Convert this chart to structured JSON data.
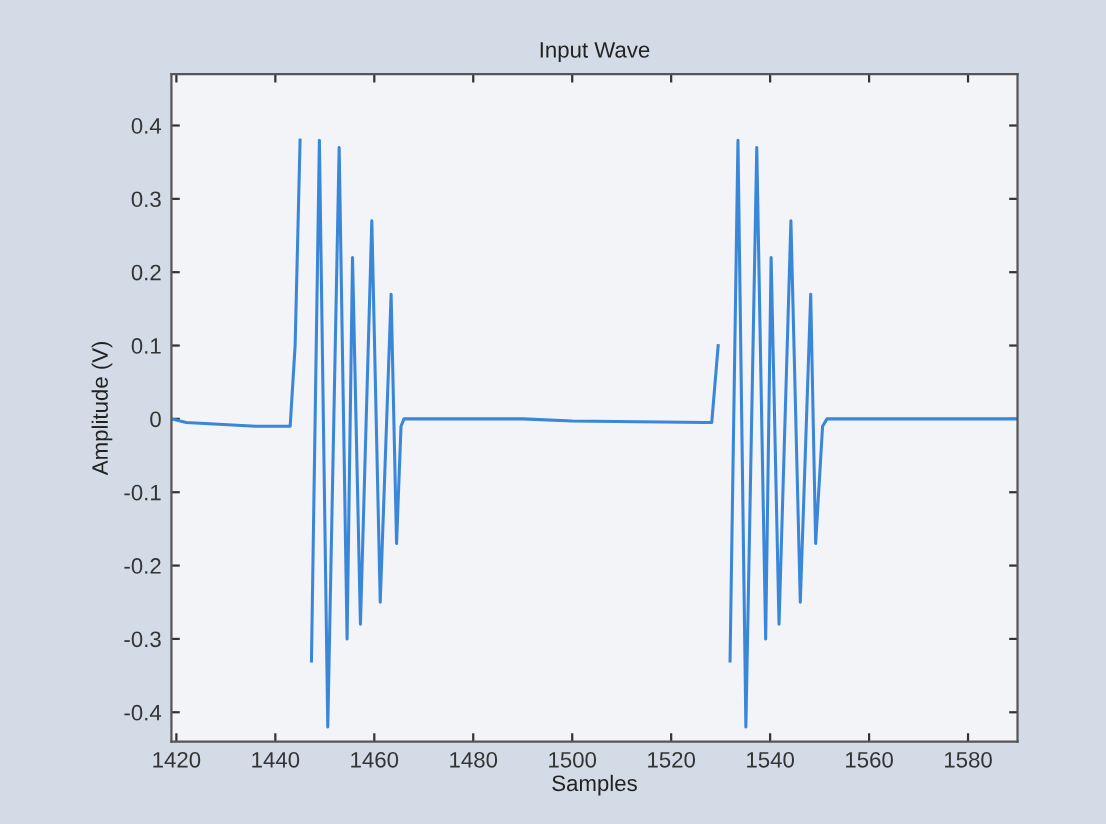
{
  "chart_data": {
    "type": "line",
    "title": "Input Wave",
    "xlabel": "Samples",
    "ylabel": "Amplitude (V)",
    "x": [
      1419,
      1422,
      1436,
      1443,
      1444,
      1445,
      1446,
      1447.3,
      1448.9,
      1450.6,
      1452.9,
      1454.5,
      1455.6,
      1457.2,
      1459.5,
      1461.2,
      1463.4,
      1464.5,
      1465.4,
      1466,
      1490,
      1500,
      1527,
      1528.2,
      1529.5,
      1530.6,
      1531.9,
      1533.5,
      1535.1,
      1537.3,
      1539.1,
      1540.2,
      1541.8,
      1544.2,
      1546.1,
      1548.2,
      1549.2,
      1550.6,
      1551.5,
      1590
    ],
    "series": [
      {
        "color": "#3a86d8",
        "values": [
          0,
          -0.005,
          -0.01,
          -0.01,
          0.1,
          0.38,
          null,
          -0.33,
          0.38,
          -0.42,
          0.37,
          -0.3,
          0.22,
          -0.28,
          0.27,
          -0.25,
          0.17,
          -0.17,
          -0.01,
          0,
          0,
          -0.003,
          -0.005,
          -0.005,
          0.1,
          null,
          -0.33,
          0.38,
          -0.42,
          0.37,
          -0.3,
          0.22,
          -0.28,
          0.27,
          -0.25,
          0.17,
          -0.17,
          -0.01,
          0,
          0
        ]
      }
    ],
    "xlim": [
      1419,
      1590
    ],
    "ylim": [
      -0.44,
      0.47
    ],
    "xticks": [
      1420,
      1440,
      1460,
      1480,
      1500,
      1520,
      1540,
      1560,
      1580
    ],
    "yticks": [
      -0.4,
      -0.3,
      -0.2,
      -0.1,
      0,
      0.1,
      0.2,
      0.3,
      0.4
    ],
    "grid": false,
    "legend": false,
    "marker": "none",
    "line_style": "solid"
  }
}
